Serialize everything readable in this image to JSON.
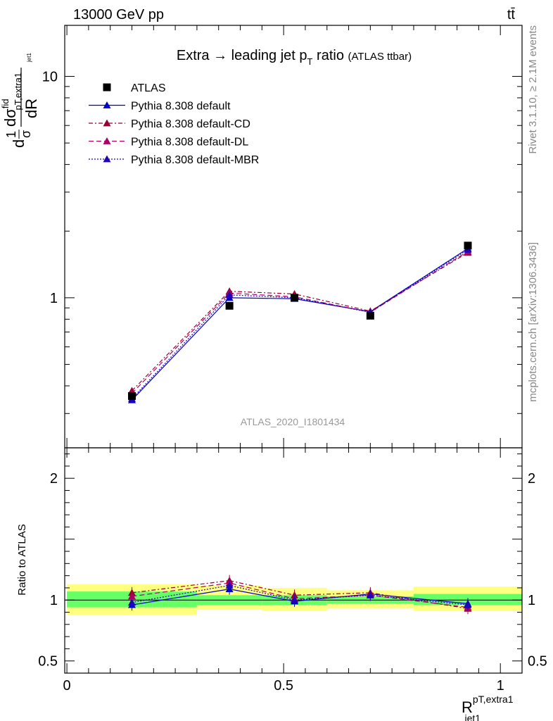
{
  "header": {
    "energy_label": "13000 GeV pp",
    "process_label": "tt̄"
  },
  "side_labels": {
    "rivet": "Rivet 3.1.10, ≥ 2.1M events",
    "mcplots": "mcplots.cern.ch [arXiv:1306.3436]"
  },
  "watermark": "ATLAS_2020_I1801434",
  "chart_data": {
    "type": "line",
    "title": {
      "main": "Extra → leading jet p",
      "sub": "T",
      "tail": " ratio",
      "extra": "(ATLAS ttbar)"
    },
    "ylabel": {
      "frac_num": "1",
      "frac_den": "σ",
      "pre": "d",
      "num_main": "dσ",
      "num_sup": "fid",
      "num_sub": "pT,extra1",
      "num_subsub": "jet1",
      "den": "dR"
    },
    "xlabel": {
      "main": "R",
      "sup": "pT,extra1",
      "sub": "jet1"
    },
    "ratio_ylabel": "Ratio to ATLAS",
    "x_range": [
      -0.005,
      1.05
    ],
    "y_range_main": [
      0.21,
      17
    ],
    "y_scale_main": "log",
    "y_range_ratio": [
      0.4,
      2.25
    ],
    "x_ticks": [
      {
        "value": 0,
        "label": "0"
      },
      {
        "value": 0.5,
        "label": "0.5"
      },
      {
        "value": 1,
        "label": "1"
      }
    ],
    "y_ticks_main": [
      {
        "value": 1,
        "label": "1"
      },
      {
        "value": 10,
        "label": "10"
      }
    ],
    "y_ticks_ratio": [
      {
        "value": 0.5,
        "label": "0.5"
      },
      {
        "value": 1,
        "label": "1"
      },
      {
        "value": 2,
        "label": "2"
      }
    ],
    "x": [
      0.15,
      0.375,
      0.525,
      0.7,
      0.925
    ],
    "bins": [
      [
        0,
        0.3
      ],
      [
        0.3,
        0.45
      ],
      [
        0.45,
        0.6
      ],
      [
        0.6,
        0.8
      ],
      [
        0.8,
        1.05
      ]
    ],
    "data": {
      "name": "ATLAS",
      "values": [
        0.36,
        0.92,
        1.0,
        0.83,
        1.72
      ],
      "ratio_band_inner": [
        [
          0.94,
          1.07
        ],
        [
          0.96,
          1.04
        ],
        [
          0.96,
          1.04
        ],
        [
          0.97,
          1.03
        ],
        [
          0.96,
          1.05
        ]
      ],
      "ratio_band_outer": [
        [
          0.88,
          1.13
        ],
        [
          0.92,
          1.12
        ],
        [
          0.91,
          1.1
        ],
        [
          0.93,
          1.08
        ],
        [
          0.91,
          1.11
        ]
      ]
    },
    "series": [
      {
        "name": "Pythia 8.308 default",
        "color": "#0000cc",
        "dash": "",
        "values": [
          0.345,
          1.0,
          0.99,
          0.865,
          1.67
        ],
        "ratio": [
          0.96,
          1.09,
          0.99,
          1.05,
          0.97
        ]
      },
      {
        "name": "Pythia 8.308 default-CD",
        "color": "#990033",
        "dash": "6,3,2,3",
        "values": [
          0.38,
          1.07,
          1.04,
          0.87,
          1.6
        ],
        "ratio": [
          1.06,
          1.16,
          1.04,
          1.06,
          0.93
        ]
      },
      {
        "name": "Pythia 8.308 default-DL",
        "color": "#aa0066",
        "dash": "7,4",
        "values": [
          0.37,
          1.05,
          1.01,
          0.86,
          1.62
        ],
        "ratio": [
          1.03,
          1.14,
          1.01,
          1.04,
          0.94
        ]
      },
      {
        "name": "Pythia 8.308 default-MBR",
        "color": "#2200bb",
        "dash": "2,2",
        "values": [
          0.35,
          1.03,
          1.0,
          0.86,
          1.65
        ],
        "ratio": [
          0.98,
          1.12,
          1.0,
          1.04,
          0.96
        ]
      }
    ],
    "legend_position": "top-left",
    "band_colors": {
      "inner": "#66ff66",
      "outer": "#ffff80"
    }
  }
}
